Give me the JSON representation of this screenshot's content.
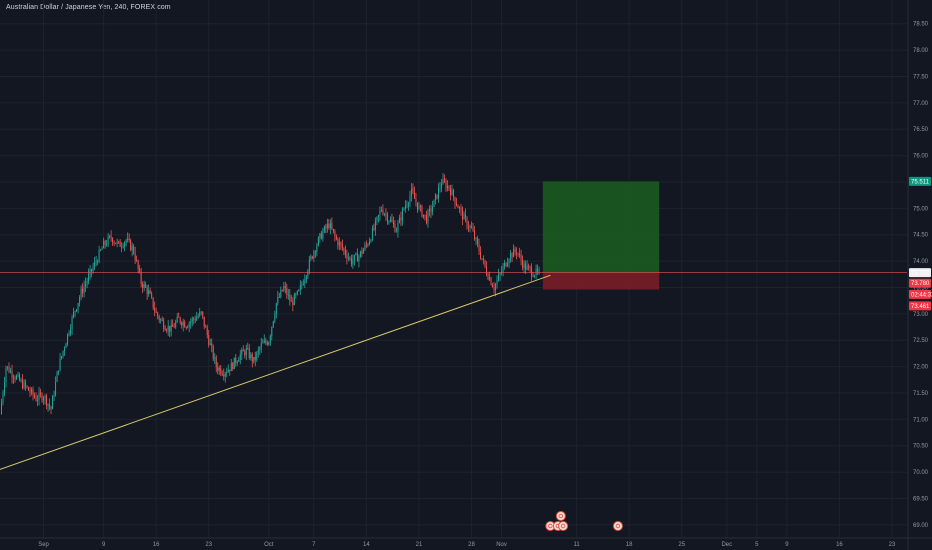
{
  "chart_data": {
    "type": "candlestick",
    "title": "Australian Dollar / Japanese Yen, 240, FOREX.com",
    "ylim": [
      68.75,
      78.95
    ],
    "y_ticks": [
      "69.00",
      "69.50",
      "70.00",
      "70.50",
      "71.00",
      "71.50",
      "72.00",
      "72.50",
      "73.00",
      "73.50",
      "74.00",
      "74.50",
      "75.00",
      "75.50",
      "76.00",
      "76.50",
      "77.00",
      "77.50",
      "78.00",
      "78.50"
    ],
    "x_ticks": [
      {
        "label": "Sep",
        "day": 0
      },
      {
        "label": "9",
        "day": 8
      },
      {
        "label": "16",
        "day": 15
      },
      {
        "label": "23",
        "day": 22
      },
      {
        "label": "Oct",
        "day": 30
      },
      {
        "label": "7",
        "day": 36
      },
      {
        "label": "14",
        "day": 43
      },
      {
        "label": "21",
        "day": 50
      },
      {
        "label": "28",
        "day": 57
      },
      {
        "label": "Nov",
        "day": 61
      },
      {
        "label": "11",
        "day": 71
      },
      {
        "label": "18",
        "day": 78
      },
      {
        "label": "25",
        "day": 85
      },
      {
        "label": "Dec",
        "day": 91
      },
      {
        "label": "5",
        "day": 95
      },
      {
        "label": "9",
        "day": 99
      },
      {
        "label": "16",
        "day": 106
      },
      {
        "label": "23",
        "day": 113
      }
    ],
    "x_range_days": [
      -5.8,
      115
    ],
    "grid": true,
    "colors": {
      "up": "#26a69a",
      "down": "#ef5350",
      "background": "#131722",
      "grid": "#1e222d",
      "trendline": "#d4c76a",
      "profit_zone": "#1b5e20",
      "loss_zone": "#7f1d26"
    },
    "price_line": 73.782,
    "price_key_points": [
      [
        -5.8,
        71.1
      ],
      [
        -5,
        72.0
      ],
      [
        -3,
        71.7
      ],
      [
        -1,
        71.4
      ],
      [
        0,
        71.45
      ],
      [
        1,
        71.2
      ],
      [
        2,
        72.0
      ],
      [
        3,
        72.5
      ],
      [
        4,
        73.0
      ],
      [
        5,
        73.4
      ],
      [
        6,
        73.7
      ],
      [
        7,
        74.0
      ],
      [
        8,
        74.3
      ],
      [
        9,
        74.45
      ],
      [
        10,
        74.3
      ],
      [
        11,
        74.4
      ],
      [
        12,
        74.2
      ],
      [
        13,
        73.6
      ],
      [
        14,
        73.4
      ],
      [
        15,
        73.0
      ],
      [
        16,
        72.8
      ],
      [
        17,
        72.7
      ],
      [
        18,
        72.9
      ],
      [
        19,
        72.8
      ],
      [
        20,
        72.9
      ],
      [
        21,
        73.0
      ],
      [
        22,
        72.5
      ],
      [
        23,
        72.0
      ],
      [
        24,
        71.9
      ],
      [
        25,
        72.0
      ],
      [
        26,
        72.2
      ],
      [
        27,
        72.3
      ],
      [
        28,
        72.1
      ],
      [
        29,
        72.4
      ],
      [
        30,
        72.5
      ],
      [
        31,
        73.2
      ],
      [
        32,
        73.5
      ],
      [
        33,
        73.2
      ],
      [
        34,
        73.4
      ],
      [
        35,
        73.8
      ],
      [
        36,
        74.2
      ],
      [
        37,
        74.5
      ],
      [
        38,
        74.7
      ],
      [
        39,
        74.4
      ],
      [
        40,
        74.2
      ],
      [
        41,
        74.0
      ],
      [
        42,
        74.1
      ],
      [
        43,
        74.3
      ],
      [
        44,
        74.6
      ],
      [
        45,
        75.0
      ],
      [
        46,
        74.8
      ],
      [
        47,
        74.6
      ],
      [
        48,
        75.0
      ],
      [
        49,
        75.3
      ],
      [
        50,
        75.0
      ],
      [
        51,
        74.8
      ],
      [
        52,
        75.1
      ],
      [
        53,
        75.5
      ],
      [
        54,
        75.4
      ],
      [
        55,
        75.1
      ],
      [
        56,
        74.8
      ],
      [
        57,
        74.6
      ],
      [
        58,
        74.2
      ],
      [
        59,
        73.8
      ],
      [
        60,
        73.5
      ],
      [
        61,
        73.8
      ],
      [
        62,
        74.1
      ],
      [
        63,
        74.2
      ],
      [
        64,
        73.9
      ],
      [
        65,
        73.8
      ],
      [
        66,
        73.75
      ]
    ],
    "trendline": {
      "from": {
        "day": -5.8,
        "price": 70.05
      },
      "to": {
        "day": 67.5,
        "price": 73.73
      }
    },
    "position": {
      "entry": 73.782,
      "target": 75.511,
      "stop": 73.461,
      "start_day": 66.5,
      "end_day": 82
    },
    "price_tags": [
      {
        "label": "75.511",
        "price": 75.511,
        "color": "#089981"
      },
      {
        "label": "73.782",
        "price": 73.782,
        "color": "#eef0f3",
        "text_color": "#131722"
      },
      {
        "label": "73.780",
        "price": 73.58,
        "color": "#f23645"
      },
      {
        "label": "02:44:32",
        "price": 73.37,
        "color": "#f23645"
      },
      {
        "label": "73.461",
        "price": 73.15,
        "color": "#f23645"
      }
    ],
    "event_icons": [
      {
        "day": 67.5
      },
      {
        "day": 68.5
      },
      {
        "day": 69.2
      },
      {
        "day": 68.9,
        "stacked": true
      },
      {
        "day": 76.5
      }
    ]
  }
}
